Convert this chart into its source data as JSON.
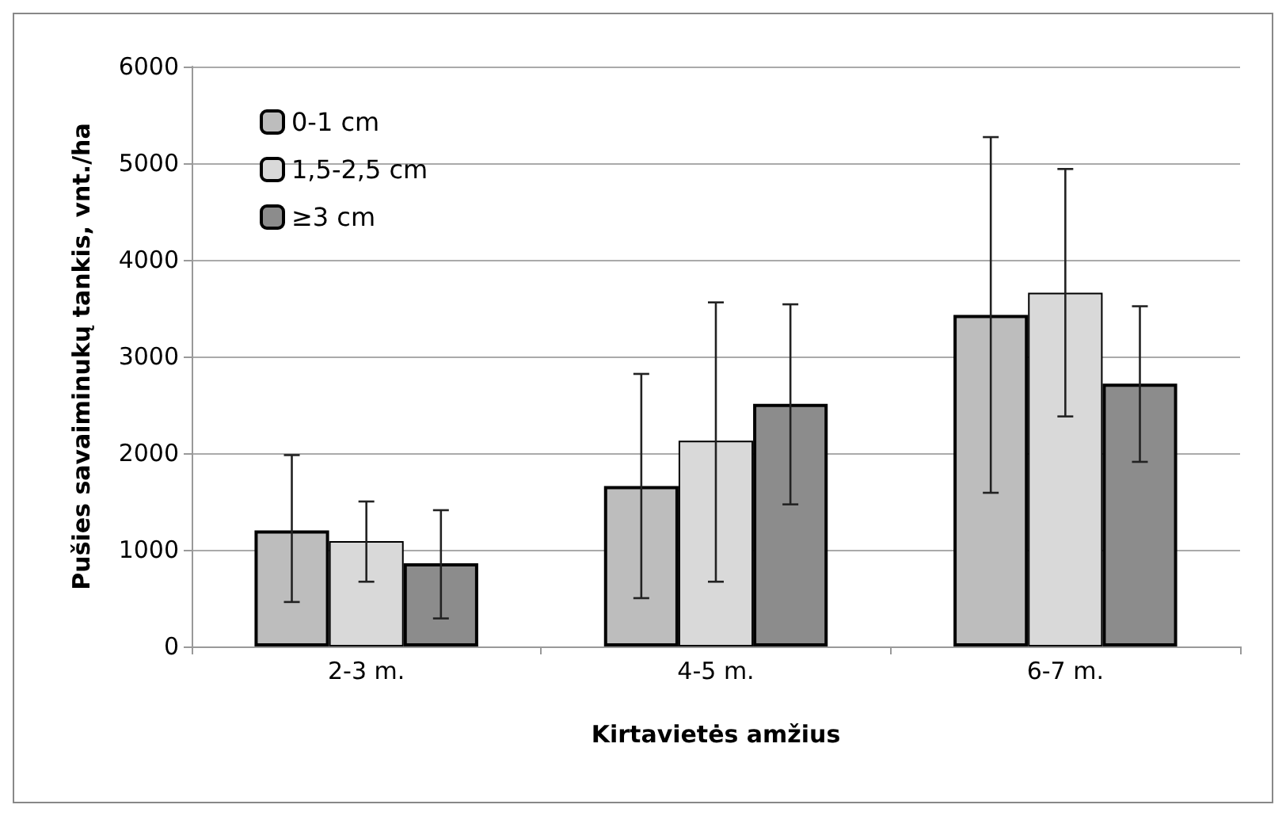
{
  "chart_data": {
    "type": "bar",
    "xlabel": "Kirtavietės amžius",
    "ylabel": "Pušies savaiminukų tankis, vnt./ha",
    "categories": [
      "2-3 m.",
      "4-5 m.",
      "6-7 m."
    ],
    "series": [
      {
        "name": "0-1 cm",
        "color": "#bdbdbd",
        "values": [
          1200,
          1660,
          3430
        ],
        "errors": [
          [
            460,
            1980
          ],
          [
            500,
            2820
          ],
          [
            1590,
            5270
          ]
        ]
      },
      {
        "name": "1,5-2,5 cm",
        "color": "#d9d9d9",
        "values": [
          1090,
          2130,
          3660
        ],
        "errors": [
          [
            670,
            1500
          ],
          [
            670,
            3560
          ],
          [
            2380,
            4940
          ]
        ]
      },
      {
        "name": "≥3 cm",
        "color": "#8c8c8c",
        "values": [
          860,
          2510,
          2720
        ],
        "errors": [
          [
            290,
            1410
          ],
          [
            1470,
            3540
          ],
          [
            1910,
            3520
          ]
        ]
      }
    ],
    "ylim": [
      0,
      6000
    ],
    "yticks": [
      0,
      1000,
      2000,
      3000,
      4000,
      5000,
      6000
    ],
    "grid": "y",
    "legend": "top left"
  }
}
